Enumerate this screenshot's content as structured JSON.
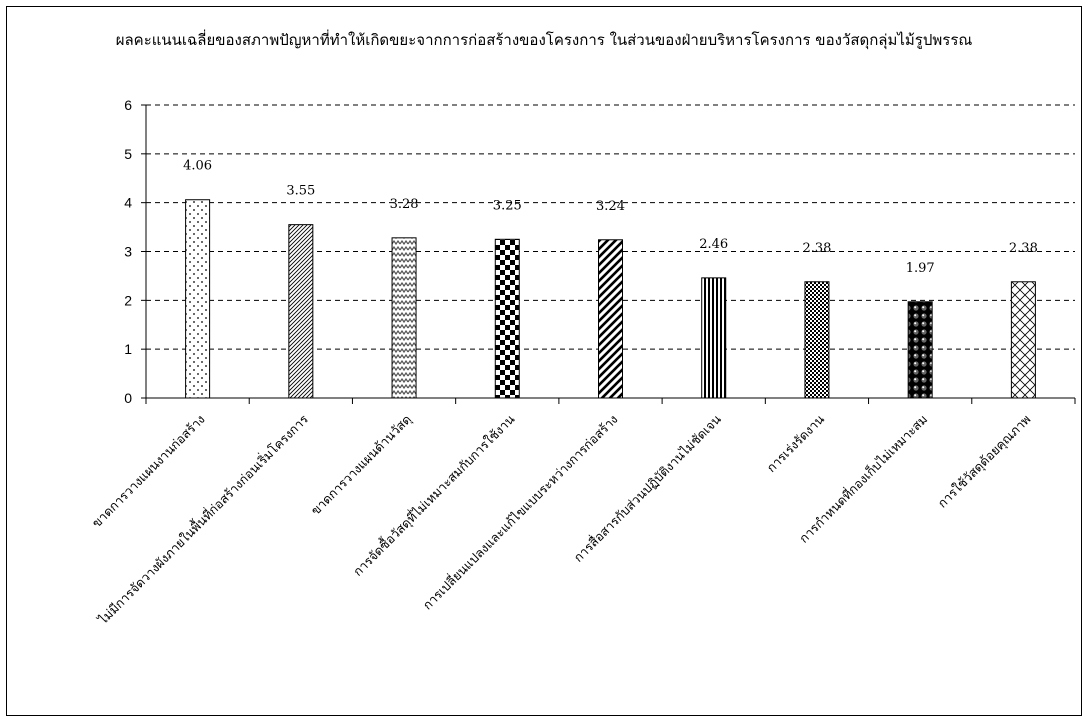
{
  "chart_data": {
    "type": "bar",
    "title": "ผลคะแนนเฉลี่ยของสภาพปัญหาที่ทำให้เกิดขยะจากการก่อสร้างของโครงการ ในส่วนของฝ่ายบริหารโครงการ ของวัสดุกลุ่มไม้รูปพรรณ",
    "xlabel": "",
    "ylabel": "",
    "ylim": [
      0,
      6
    ],
    "yticks": [
      0,
      1,
      2,
      3,
      4,
      5,
      6
    ],
    "grid": true,
    "legend": "none",
    "categories": [
      "ขาดการวางแผนงานก่อสร้าง",
      "ไม่มีการจัดวางผังภายในพื้นที่ก่อสร้างก่อนเริ่มโครงการ",
      "ขาดการวางแผนด้านวัสดุ",
      "การจัดซื้อวัสดุที่ไม่เหมาะสมกับการใช้งาน",
      "การเปลี่ยนแปลงและแก้ไขแบบระหว่างการก่อสร้าง",
      "การสื่อสารกับส่วนปฏิบัติงานไม่ชัดเจน",
      "การเร่งรัดงาน",
      "การกำหนดที่กองเก็บไม่เหมาะสม",
      "การใช้วัสดุด้อยคุณภาพ"
    ],
    "values": [
      4.06,
      3.55,
      3.28,
      3.25,
      3.24,
      2.46,
      2.38,
      1.97,
      2.38
    ],
    "data_labels": [
      "4.06",
      "3.55",
      "3.28",
      "3.25",
      "3.24",
      "2.46",
      "2.38",
      "1.97",
      "2.38"
    ],
    "patterns": [
      "dots",
      "diagonal-fine",
      "zigzag",
      "checker",
      "diagonal-bold",
      "vertical",
      "checker-fine",
      "spheres",
      "crosshatch"
    ]
  }
}
